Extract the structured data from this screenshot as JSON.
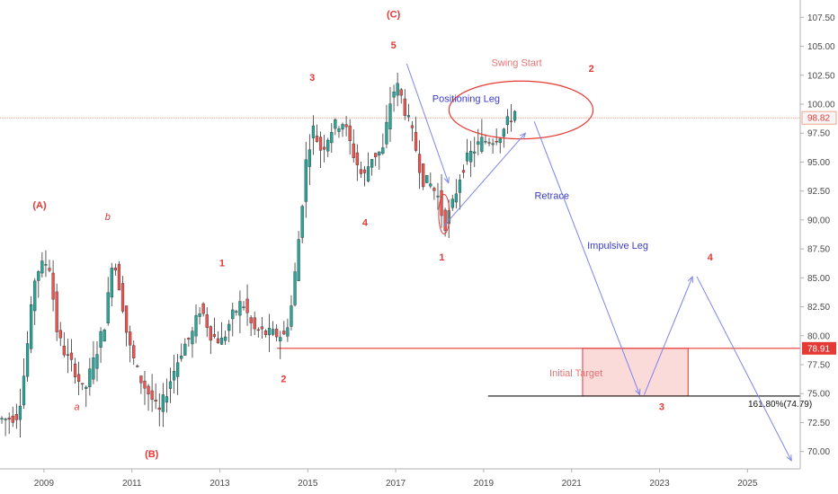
{
  "chart_data": {
    "type": "candlestick",
    "colors": {
      "up": "#26a69a",
      "down": "#ef5350",
      "wick": "#333333",
      "annotation": "#e53935",
      "arrow": "#7b86e8",
      "target_zone": "#fbdada"
    },
    "x_axis": {
      "range": [
        2008.0,
        2026.2
      ],
      "ticks": [
        "2009",
        "2011",
        "2013",
        "2015",
        "2017",
        "2019",
        "2021",
        "2023",
        "2025"
      ],
      "tick_values": [
        2009,
        2011,
        2013,
        2015,
        2017,
        2019,
        2021,
        2023,
        2025
      ]
    },
    "y_axis": {
      "range": [
        68.5,
        109.0
      ],
      "ticks": [
        "107.50",
        "105.00",
        "102.50",
        "100.00",
        "97.50",
        "95.00",
        "92.50",
        "90.00",
        "87.50",
        "85.00",
        "82.50",
        "80.00",
        "77.50",
        "75.00",
        "72.50",
        "70.00"
      ],
      "tick_values": [
        107.5,
        105,
        102.5,
        100,
        97.5,
        95,
        92.5,
        90,
        87.5,
        85,
        82.5,
        80,
        77.5,
        75,
        72.5,
        70
      ],
      "position": "right"
    },
    "anchors": [
      [
        2008.0,
        72.8
      ],
      [
        2008.2,
        72.8
      ],
      [
        2008.45,
        73.2
      ],
      [
        2008.6,
        77.0
      ],
      [
        2008.85,
        85.5
      ],
      [
        2009.15,
        86.5
      ],
      [
        2009.35,
        80.0
      ],
      [
        2009.55,
        78.2
      ],
      [
        2009.75,
        77.0
      ],
      [
        2009.95,
        75.0
      ],
      [
        2010.25,
        78.8
      ],
      [
        2010.45,
        81.5
      ],
      [
        2010.6,
        87.0
      ],
      [
        2010.8,
        83.5
      ],
      [
        2010.95,
        79.5
      ],
      [
        2011.2,
        76.5
      ],
      [
        2011.5,
        74.5
      ],
      [
        2011.65,
        73.2
      ],
      [
        2011.9,
        76.0
      ],
      [
        2012.2,
        79.0
      ],
      [
        2012.4,
        80.0
      ],
      [
        2012.6,
        82.5
      ],
      [
        2012.85,
        80.0
      ],
      [
        2013.1,
        79.5
      ],
      [
        2013.3,
        81.5
      ],
      [
        2013.55,
        83.0
      ],
      [
        2013.8,
        80.5
      ],
      [
        2014.1,
        80.2
      ],
      [
        2014.5,
        80.0
      ],
      [
        2014.65,
        82.0
      ],
      [
        2014.8,
        87.0
      ],
      [
        2015.0,
        95.0
      ],
      [
        2015.15,
        98.0
      ],
      [
        2015.35,
        96.0
      ],
      [
        2015.6,
        98.0
      ],
      [
        2015.85,
        98.5
      ],
      [
        2016.05,
        96.0
      ],
      [
        2016.3,
        93.5
      ],
      [
        2016.5,
        95.5
      ],
      [
        2016.75,
        96.0
      ],
      [
        2016.95,
        101.0
      ],
      [
        2017.1,
        101.5
      ],
      [
        2017.25,
        99.5
      ],
      [
        2017.45,
        97.0
      ],
      [
        2017.65,
        93.5
      ],
      [
        2017.85,
        93.0
      ],
      [
        2018.0,
        92.0
      ],
      [
        2018.15,
        89.5
      ],
      [
        2018.35,
        91.5
      ],
      [
        2018.55,
        94.5
      ],
      [
        2018.8,
        96.0
      ],
      [
        2019.0,
        96.8
      ],
      [
        2019.25,
        97.0
      ],
      [
        2019.45,
        97.5
      ],
      [
        2019.6,
        98.5
      ],
      [
        2019.75,
        99.4
      ]
    ],
    "current_price": {
      "value": 98.82,
      "label": "98.82"
    },
    "initial_target_line": {
      "value": 78.91,
      "label": "78.91",
      "from_x": 2014.3
    },
    "fib_level": {
      "value": 74.79,
      "label": "161.80%(74.79)",
      "from_x": 2019.1
    },
    "target_zone": {
      "x": [
        2021.25,
        2023.65
      ],
      "y": [
        74.79,
        78.91
      ]
    },
    "projection": [
      {
        "from": [
          2020.15,
          98.5
        ],
        "to": [
          2022.55,
          74.9
        ]
      },
      {
        "from": [
          2022.65,
          74.9
        ],
        "to": [
          2023.75,
          85.1
        ]
      },
      {
        "from": [
          2023.85,
          85.1
        ],
        "to": [
          2026.0,
          69.2
        ]
      }
    ],
    "arrows": [
      {
        "from": [
          2017.25,
          103.5
        ],
        "to": [
          2018.2,
          93.2
        ]
      },
      {
        "from": [
          2018.1,
          89.5
        ],
        "to": [
          2019.95,
          97.5
        ]
      }
    ],
    "swing_ellipse": {
      "center": [
        2019.85,
        99.5
      ],
      "rx_years": 0.78,
      "ry_price": 2.5
    },
    "wave_labels": [
      {
        "text": "(A)",
        "x": 2008.9,
        "y": 91.0,
        "style": "wave"
      },
      {
        "text": "b",
        "x": 2010.45,
        "y": 90.0,
        "style": "wave-it"
      },
      {
        "text": "a",
        "x": 2009.75,
        "y": 73.6,
        "style": "wave-it"
      },
      {
        "text": "(B)",
        "x": 2011.45,
        "y": 69.5,
        "style": "wave"
      },
      {
        "text": "1",
        "x": 2013.05,
        "y": 86.0,
        "style": "wave"
      },
      {
        "text": "2",
        "x": 2014.45,
        "y": 76.0,
        "style": "wave"
      },
      {
        "text": "3",
        "x": 2015.1,
        "y": 102.0,
        "style": "wave"
      },
      {
        "text": "4",
        "x": 2016.3,
        "y": 89.5,
        "style": "wave"
      },
      {
        "text": "(C)",
        "x": 2016.95,
        "y": 107.5,
        "style": "wave"
      },
      {
        "text": "5",
        "x": 2016.95,
        "y": 104.8,
        "style": "wave"
      },
      {
        "text": "1",
        "x": 2018.05,
        "y": 86.5,
        "style": "wave"
      },
      {
        "text": "2",
        "x": 2021.45,
        "y": 102.8,
        "style": "wave"
      },
      {
        "text": "3",
        "x": 2023.05,
        "y": 73.6,
        "style": "wave"
      },
      {
        "text": "4",
        "x": 2024.15,
        "y": 86.5,
        "style": "wave"
      }
    ],
    "annotations": [
      {
        "text": "Positioning Leg",
        "x": 2018.6,
        "y": 100.2,
        "style": "ann-blue"
      },
      {
        "text": "Swing Start",
        "x": 2019.75,
        "y": 103.3,
        "style": "ann-red"
      },
      {
        "text": "Retrace",
        "x": 2020.55,
        "y": 91.8,
        "style": "ann-blue"
      },
      {
        "text": "Impulsive Leg",
        "x": 2022.05,
        "y": 87.5,
        "style": "ann-blue"
      },
      {
        "text": "Initial Target",
        "x": 2021.1,
        "y": 76.5,
        "style": "ann-red"
      }
    ]
  }
}
